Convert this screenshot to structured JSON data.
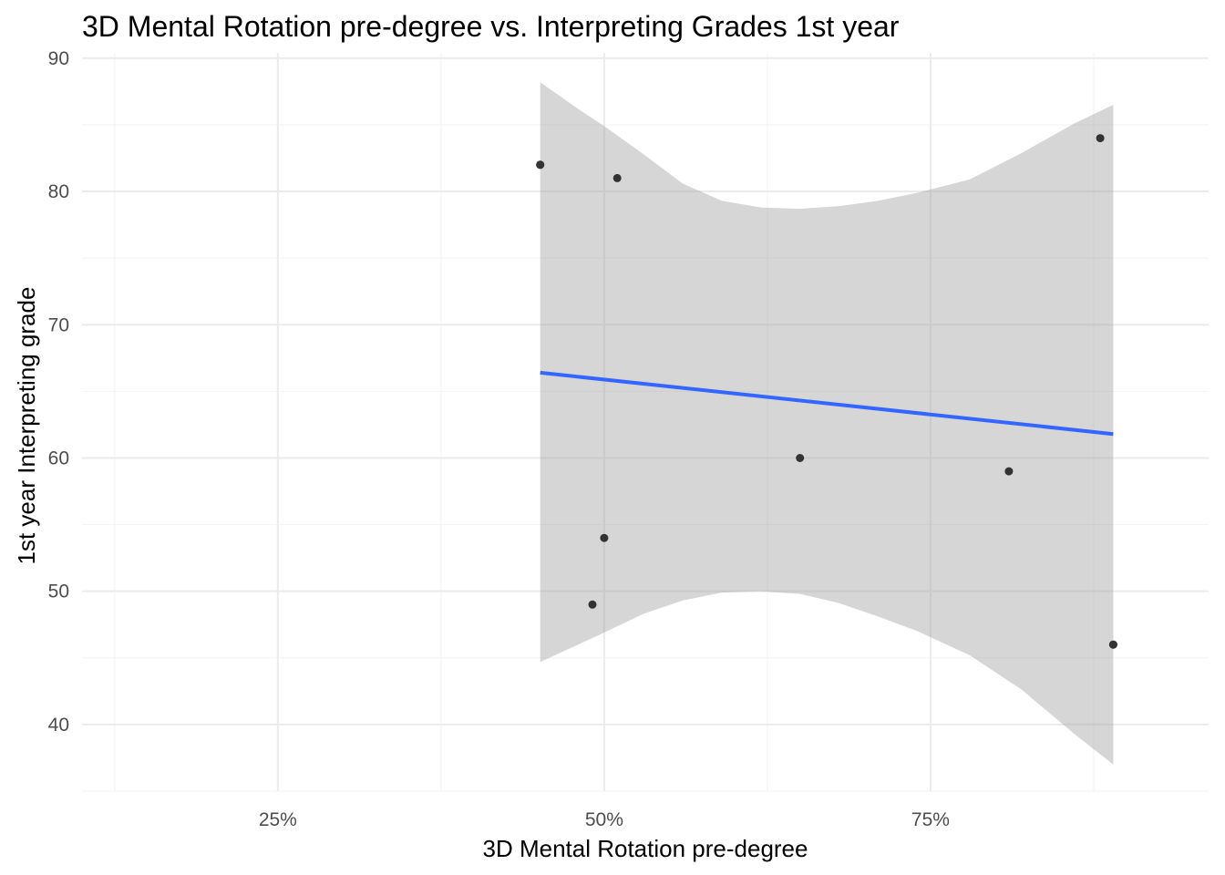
{
  "chart_data": {
    "type": "scatter",
    "title": "3D Mental Rotation pre-degree vs. Interpreting Grades 1st year",
    "xlabel": "3D Mental Rotation pre-degree",
    "ylabel": "1st year Interpreting grade",
    "x_unit": "percent",
    "xlim": [
      0.1,
      0.963
    ],
    "ylim": [
      35.0,
      90.4
    ],
    "x_ticks": [
      0.25,
      0.5,
      0.75
    ],
    "x_tick_labels": [
      "25%",
      "50%",
      "75%"
    ],
    "x_minor_ticks": [
      0.125,
      0.375,
      0.625,
      0.875
    ],
    "y_ticks": [
      40,
      50,
      60,
      70,
      80,
      90
    ],
    "y_tick_labels": [
      "40",
      "50",
      "60",
      "70",
      "80",
      "90"
    ],
    "y_minor_ticks": [
      35,
      45,
      55,
      65,
      75,
      85
    ],
    "grid": true,
    "points": [
      {
        "x": 0.451,
        "y": 82
      },
      {
        "x": 0.451,
        "y": 82
      },
      {
        "x": 0.51,
        "y": 81
      },
      {
        "x": 0.5,
        "y": 54
      },
      {
        "x": 0.491,
        "y": 49
      },
      {
        "x": 0.65,
        "y": 60
      },
      {
        "x": 0.81,
        "y": 59
      },
      {
        "x": 0.88,
        "y": 84
      },
      {
        "x": 0.89,
        "y": 46
      },
      {
        "x": 0.89,
        "y": 46
      }
    ],
    "fit_line": {
      "method": "lm",
      "x": [
        0.451,
        0.89
      ],
      "y": [
        66.4,
        61.8
      ],
      "color": "#3366ff"
    },
    "confidence_band": [
      {
        "x": 0.451,
        "lower": 44.7,
        "upper": 88.2
      },
      {
        "x": 0.48,
        "lower": 46.0,
        "upper": 86.2
      },
      {
        "x": 0.5,
        "lower": 46.9,
        "upper": 84.9
      },
      {
        "x": 0.53,
        "lower": 48.3,
        "upper": 82.8
      },
      {
        "x": 0.56,
        "lower": 49.3,
        "upper": 80.6
      },
      {
        "x": 0.59,
        "lower": 49.9,
        "upper": 79.3
      },
      {
        "x": 0.62,
        "lower": 50.0,
        "upper": 78.8
      },
      {
        "x": 0.65,
        "lower": 49.8,
        "upper": 78.7
      },
      {
        "x": 0.68,
        "lower": 49.1,
        "upper": 78.9
      },
      {
        "x": 0.71,
        "lower": 48.1,
        "upper": 79.3
      },
      {
        "x": 0.74,
        "lower": 47.0,
        "upper": 79.9
      },
      {
        "x": 0.78,
        "lower": 45.2,
        "upper": 80.9
      },
      {
        "x": 0.82,
        "lower": 42.6,
        "upper": 82.9
      },
      {
        "x": 0.86,
        "lower": 39.3,
        "upper": 85.1
      },
      {
        "x": 0.89,
        "lower": 37.0,
        "upper": 86.5
      }
    ],
    "band_color": "#999999",
    "point_color": "#333333"
  }
}
